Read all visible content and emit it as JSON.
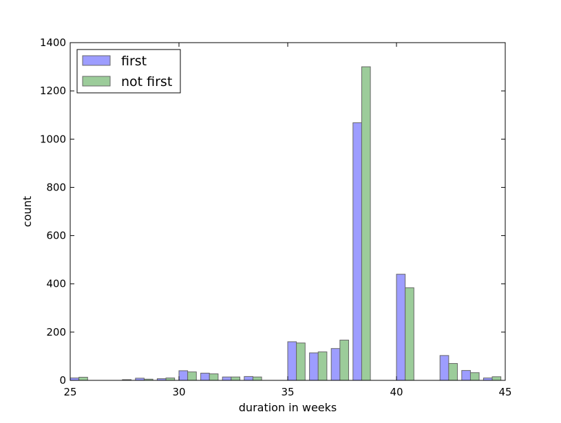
{
  "chart_data": {
    "type": "bar",
    "title": "",
    "xlabel": "duration in weeks",
    "ylabel": "count",
    "xlim": [
      25,
      45
    ],
    "ylim": [
      0,
      1400
    ],
    "xticks": [
      "25",
      "30",
      "35",
      "40",
      "45"
    ],
    "yticks": [
      "0",
      "200",
      "400",
      "600",
      "800",
      "1000",
      "1200",
      "1400"
    ],
    "grid": false,
    "legend_position": "top-left",
    "weeks": [
      25,
      26,
      27,
      28,
      29,
      30,
      31,
      32,
      33,
      34,
      35,
      36,
      37,
      38,
      39,
      40,
      41,
      42,
      43,
      44
    ],
    "series": [
      {
        "name": "first",
        "color": "#9d9dff",
        "values": [
          10,
          0,
          0,
          9,
          7,
          40,
          30,
          14,
          16,
          0,
          160,
          114,
          132,
          1068,
          0,
          440,
          0,
          103,
          41,
          10
        ]
      },
      {
        "name": "not first",
        "color": "#9ccc9a",
        "values": [
          13,
          0,
          3,
          5,
          10,
          35,
          27,
          14,
          14,
          0,
          155,
          118,
          167,
          1300,
          0,
          384,
          0,
          70,
          32,
          15
        ]
      }
    ]
  }
}
